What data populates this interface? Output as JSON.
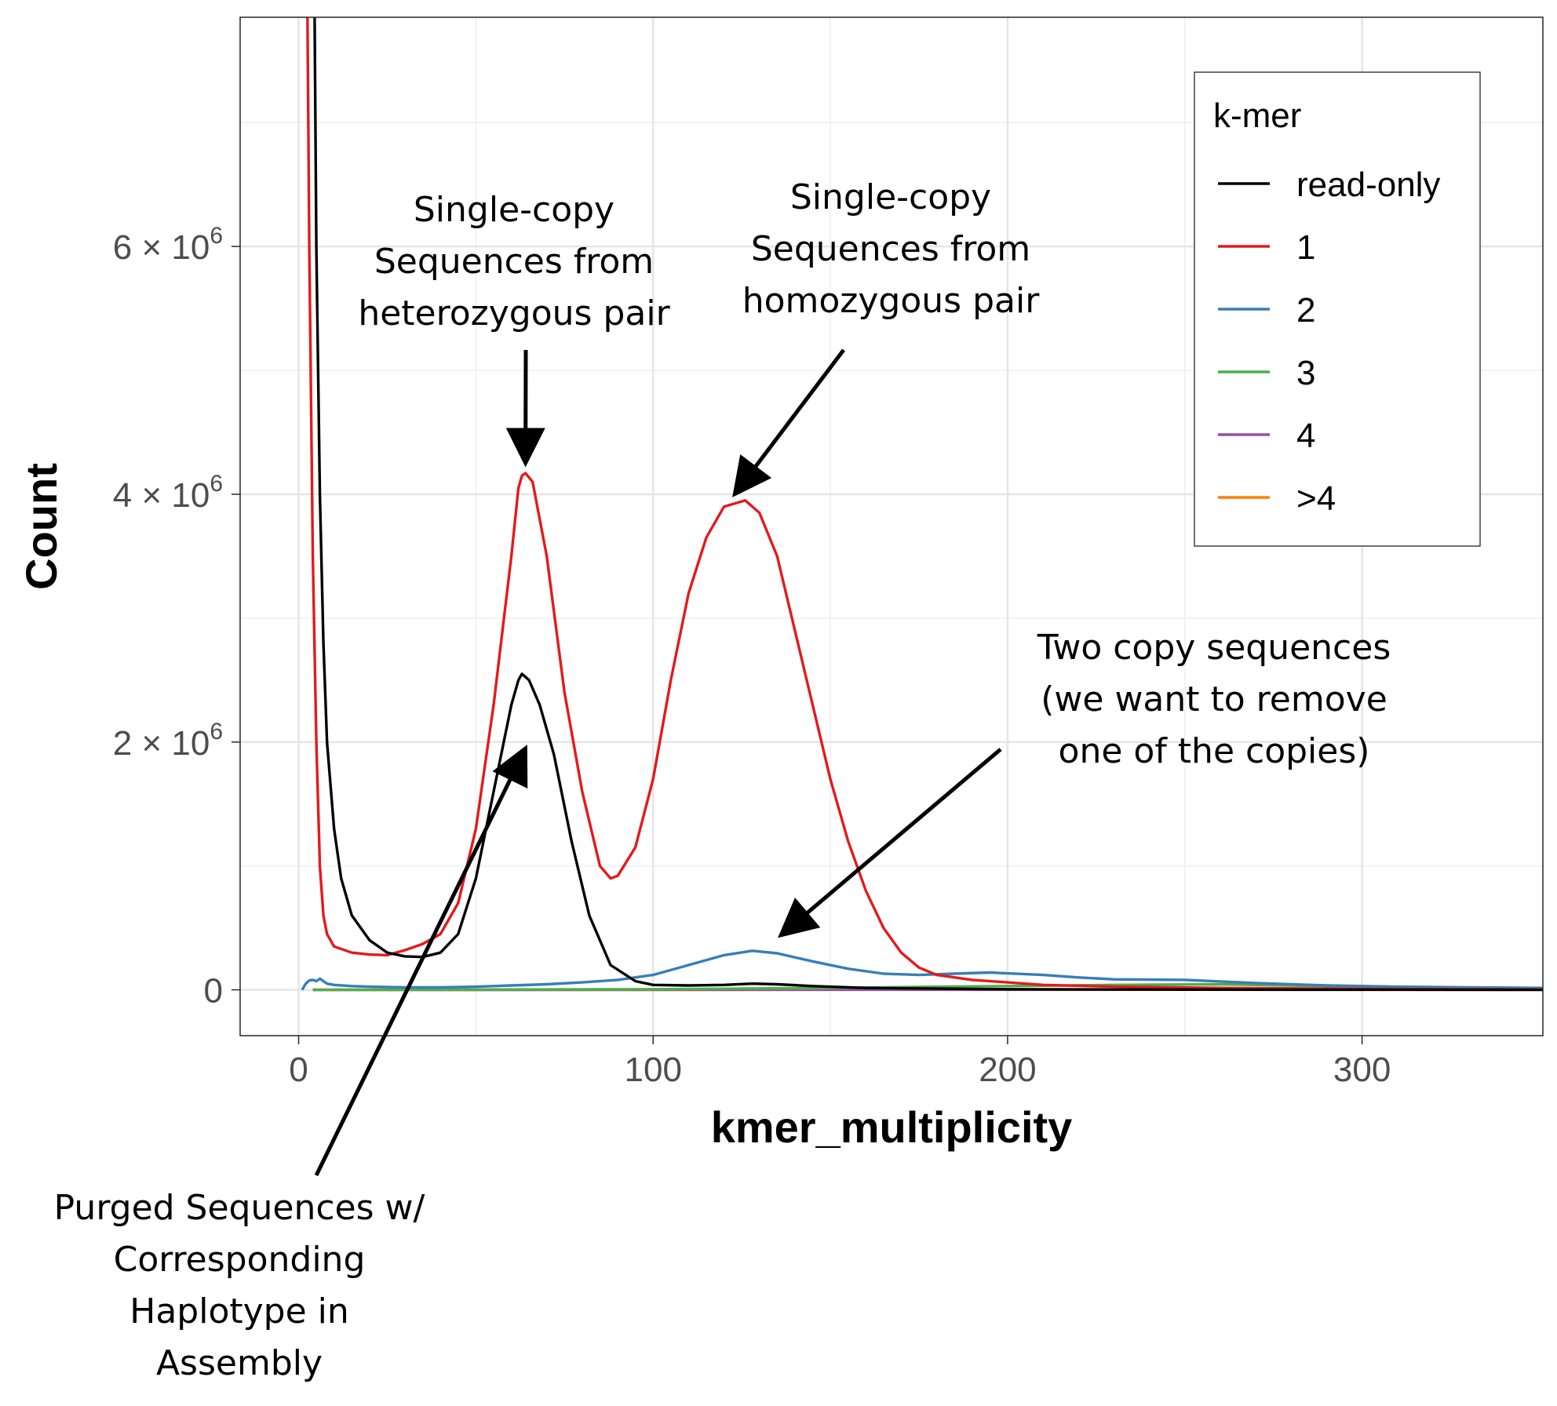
{
  "chart_data": {
    "type": "line",
    "xlabel": "kmer_multiplicity",
    "ylabel": "Count",
    "xlim": [
      -16.5,
      351
    ],
    "ylim": [
      -370000,
      7850000
    ],
    "x_ticks": [
      0,
      100,
      200,
      300
    ],
    "x_tick_labels": [
      "0",
      "100",
      "200",
      "300"
    ],
    "y_ticks": [
      0,
      2000000,
      4000000,
      6000000
    ],
    "y_tick_labels": [
      {
        "value": 0,
        "mantissa": "0",
        "exponent": ""
      },
      {
        "value": 2000000,
        "mantissa": "2 × 10",
        "exponent": "6"
      },
      {
        "value": 4000000,
        "mantissa": "4 × 10",
        "exponent": "6"
      },
      {
        "value": 6000000,
        "mantissa": "6 × 10",
        "exponent": "6"
      }
    ],
    "y_minor_ticks": [
      1000000,
      3000000,
      5000000,
      7000000
    ],
    "x_minor_ticks": [
      50,
      150,
      250
    ],
    "grid": true,
    "legend": {
      "title": "k-mer",
      "position": "top-right",
      "entries": [
        "read-only",
        "1",
        "2",
        "3",
        "4",
        ">4"
      ]
    },
    "series": [
      {
        "name": "read-only",
        "color": "#000000",
        "points": [
          [
            4.5,
            7850000
          ],
          [
            5,
            6000000
          ],
          [
            6,
            4000000
          ],
          [
            7,
            2800000
          ],
          [
            8,
            2000000
          ],
          [
            10,
            1300000
          ],
          [
            12,
            900000
          ],
          [
            15,
            600000
          ],
          [
            20,
            400000
          ],
          [
            25,
            300000
          ],
          [
            30,
            270000
          ],
          [
            35,
            265000
          ],
          [
            40,
            300000
          ],
          [
            45,
            450000
          ],
          [
            50,
            900000
          ],
          [
            55,
            1600000
          ],
          [
            60,
            2300000
          ],
          [
            62,
            2500000
          ],
          [
            63,
            2550000
          ],
          [
            65,
            2500000
          ],
          [
            68,
            2300000
          ],
          [
            72,
            1900000
          ],
          [
            77,
            1200000
          ],
          [
            82,
            600000
          ],
          [
            88,
            200000
          ],
          [
            95,
            70000
          ],
          [
            100,
            40000
          ],
          [
            110,
            35000
          ],
          [
            120,
            40000
          ],
          [
            128,
            50000
          ],
          [
            135,
            45000
          ],
          [
            145,
            30000
          ],
          [
            160,
            15000
          ],
          [
            200,
            5000
          ],
          [
            250,
            2000
          ],
          [
            351,
            0
          ]
        ]
      },
      {
        "name": "1",
        "color": "#e31a1c",
        "points": [
          [
            2.5,
            7850000
          ],
          [
            3,
            6000000
          ],
          [
            4,
            3500000
          ],
          [
            5,
            2000000
          ],
          [
            6,
            1000000
          ],
          [
            7,
            600000
          ],
          [
            8,
            450000
          ],
          [
            10,
            350000
          ],
          [
            15,
            300000
          ],
          [
            20,
            285000
          ],
          [
            25,
            280000
          ],
          [
            30,
            320000
          ],
          [
            35,
            370000
          ],
          [
            40,
            450000
          ],
          [
            45,
            700000
          ],
          [
            50,
            1300000
          ],
          [
            55,
            2300000
          ],
          [
            60,
            3500000
          ],
          [
            62,
            4050000
          ],
          [
            63,
            4150000
          ],
          [
            64,
            4170000
          ],
          [
            66,
            4100000
          ],
          [
            70,
            3500000
          ],
          [
            75,
            2400000
          ],
          [
            80,
            1600000
          ],
          [
            85,
            1000000
          ],
          [
            88,
            900000
          ],
          [
            90,
            920000
          ],
          [
            95,
            1150000
          ],
          [
            100,
            1700000
          ],
          [
            105,
            2500000
          ],
          [
            110,
            3200000
          ],
          [
            115,
            3650000
          ],
          [
            120,
            3900000
          ],
          [
            126,
            3950000
          ],
          [
            130,
            3850000
          ],
          [
            135,
            3500000
          ],
          [
            140,
            2900000
          ],
          [
            145,
            2300000
          ],
          [
            150,
            1700000
          ],
          [
            155,
            1200000
          ],
          [
            160,
            800000
          ],
          [
            165,
            500000
          ],
          [
            170,
            300000
          ],
          [
            175,
            180000
          ],
          [
            180,
            120000
          ],
          [
            190,
            80000
          ],
          [
            200,
            60000
          ],
          [
            210,
            40000
          ],
          [
            230,
            25000
          ],
          [
            260,
            15000
          ],
          [
            300,
            8000
          ],
          [
            351,
            3000
          ]
        ]
      },
      {
        "name": "2",
        "color": "#377eb8",
        "points": [
          [
            1,
            0
          ],
          [
            2,
            50000
          ],
          [
            3,
            75000
          ],
          [
            4,
            80000
          ],
          [
            5,
            70000
          ],
          [
            6,
            90000
          ],
          [
            7,
            70000
          ],
          [
            8,
            50000
          ],
          [
            10,
            40000
          ],
          [
            15,
            30000
          ],
          [
            20,
            25000
          ],
          [
            30,
            20000
          ],
          [
            40,
            20000
          ],
          [
            50,
            25000
          ],
          [
            60,
            35000
          ],
          [
            70,
            45000
          ],
          [
            80,
            60000
          ],
          [
            90,
            80000
          ],
          [
            100,
            120000
          ],
          [
            110,
            200000
          ],
          [
            120,
            280000
          ],
          [
            128,
            315000
          ],
          [
            135,
            295000
          ],
          [
            145,
            230000
          ],
          [
            155,
            170000
          ],
          [
            165,
            130000
          ],
          [
            175,
            120000
          ],
          [
            185,
            130000
          ],
          [
            195,
            140000
          ],
          [
            210,
            120000
          ],
          [
            220,
            100000
          ],
          [
            230,
            85000
          ],
          [
            250,
            80000
          ],
          [
            270,
            55000
          ],
          [
            290,
            35000
          ],
          [
            310,
            25000
          ],
          [
            330,
            20000
          ],
          [
            351,
            15000
          ]
        ]
      },
      {
        "name": "3",
        "color": "#4daf4a",
        "points": [
          [
            4,
            0
          ],
          [
            100,
            5000
          ],
          [
            150,
            15000
          ],
          [
            180,
            25000
          ],
          [
            200,
            30000
          ],
          [
            230,
            40000
          ],
          [
            260,
            45000
          ],
          [
            290,
            30000
          ],
          [
            320,
            20000
          ],
          [
            351,
            12000
          ]
        ]
      },
      {
        "name": "4",
        "color": "#984ea3",
        "points": [
          [
            4,
            0
          ],
          [
            200,
            2000
          ],
          [
            300,
            5000
          ],
          [
            351,
            5000
          ]
        ]
      },
      {
        "name": ">4",
        "color": "#ff7f00",
        "points": [
          [
            4,
            0
          ],
          [
            200,
            1000
          ],
          [
            300,
            2000
          ],
          [
            351,
            3000
          ]
        ]
      }
    ],
    "annotations": [
      {
        "lines": [
          "Single-copy",
          "Sequences from",
          "heterozygous pair"
        ],
        "target_x": 64,
        "target_y": 4250000
      },
      {
        "lines": [
          "Single-copy",
          "Sequences from",
          "homozygous pair"
        ],
        "target_x": 123,
        "target_y": 4000000
      },
      {
        "lines": [
          "Two copy sequences",
          "(we want to remove",
          "one of the copies)"
        ],
        "target_x": 136,
        "target_y": 440000
      },
      {
        "lines": [
          "Purged Sequences w/",
          "Corresponding",
          "Haplotype in",
          "Assembly"
        ],
        "target_x": 64,
        "target_y": 1950000
      }
    ]
  }
}
